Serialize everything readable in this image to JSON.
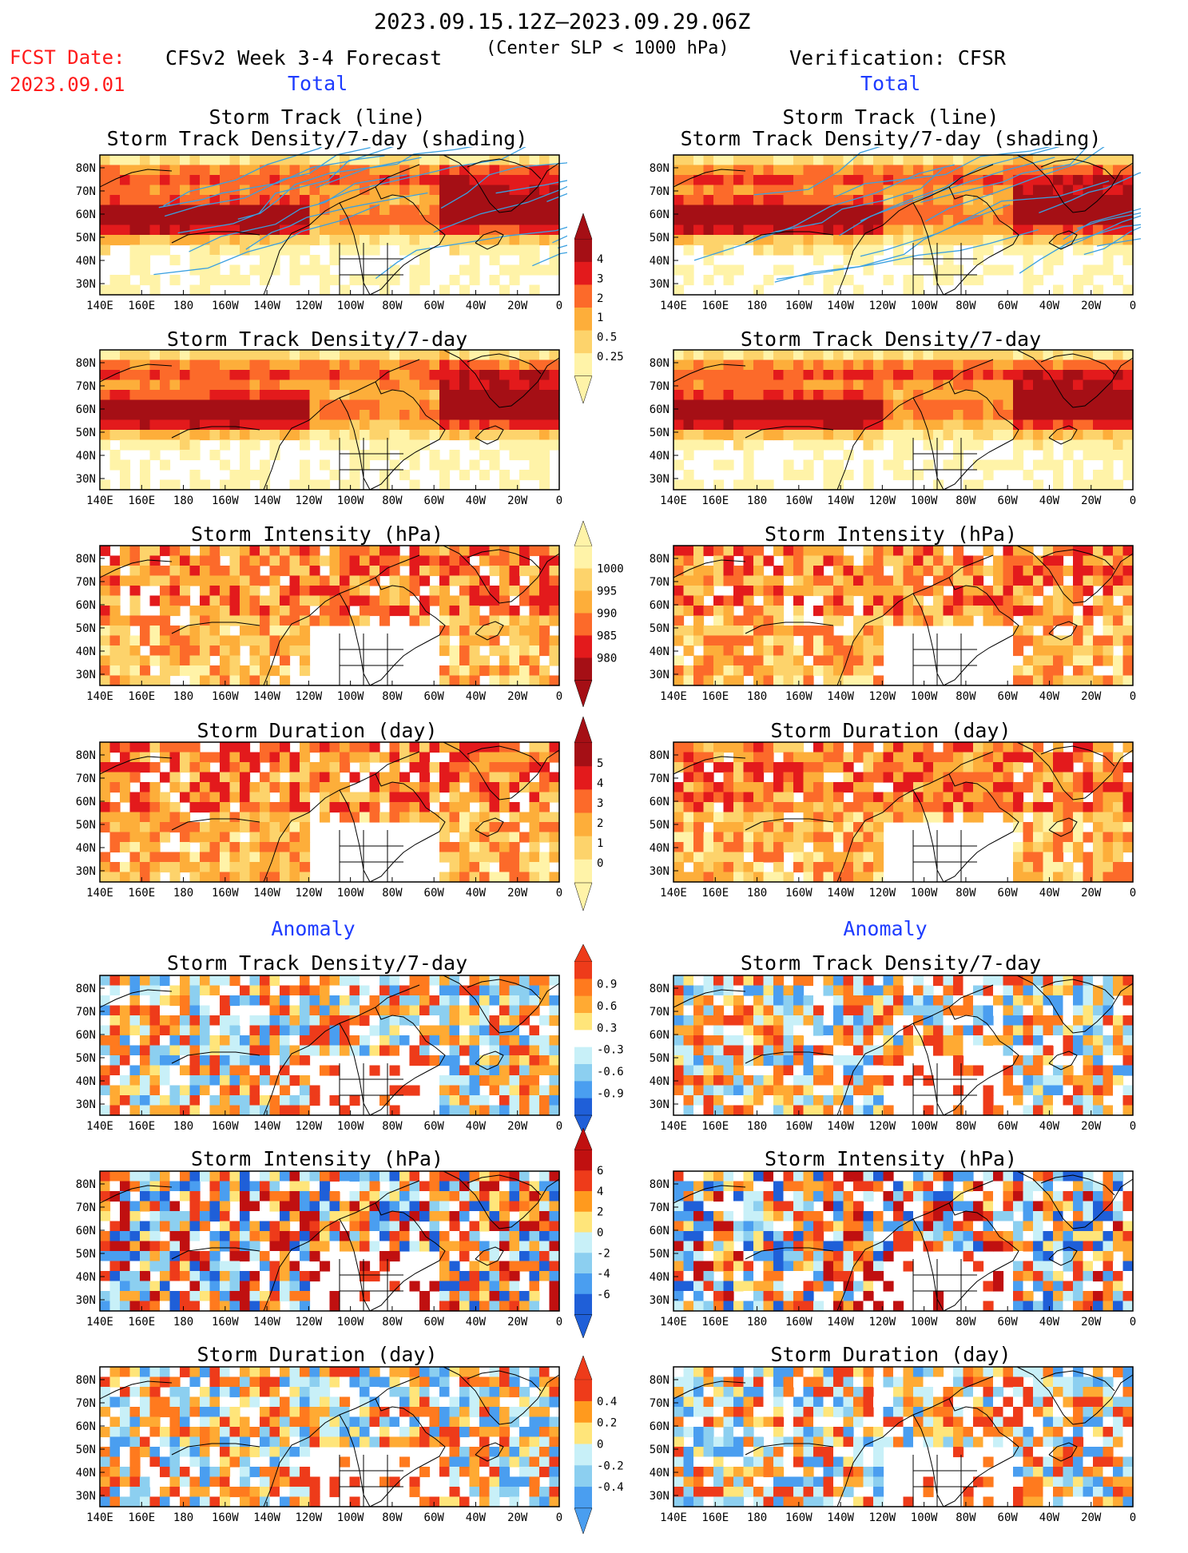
{
  "header": {
    "period": "2023.09.15.12Z–2023.09.29.06Z",
    "fcst_date_label": "FCST Date:",
    "fcst_date": "2023.09.01",
    "model": "CFSv2 Week 3-4 Forecast",
    "criterion": "(Center SLP < 1000 hPa)",
    "verification": "Verification: CFSR",
    "left_total": "Total",
    "right_total": "Total",
    "left_anomaly": "Anomaly",
    "right_anomaly": "Anomaly"
  },
  "map": {
    "lon_labels": [
      "140E",
      "160E",
      "180",
      "160W",
      "140W",
      "120W",
      "100W",
      "80W",
      "60W",
      "40W",
      "20W",
      "0"
    ],
    "lat_labels": [
      "80N",
      "70N",
      "60N",
      "50N",
      "40N",
      "30N"
    ]
  },
  "panels": {
    "left": [
      {
        "title": "Storm Track (line)",
        "title2": "Storm Track Density/7-day (shading)"
      },
      {
        "title": "Storm Track Density/7-day"
      },
      {
        "title": "Storm Intensity (hPa)"
      },
      {
        "title": "Storm Duration (day)"
      },
      {
        "title": "Storm Track Density/7-day"
      },
      {
        "title": "Storm Intensity (hPa)"
      },
      {
        "title": "Storm Duration (day)"
      }
    ],
    "right": [
      {
        "title": "Storm Track (line)",
        "title2": "Storm Track Density/7-day (shading)"
      },
      {
        "title": "Storm Track Density/7-day"
      },
      {
        "title": "Storm Intensity (hPa)"
      },
      {
        "title": "Storm Duration (day)"
      },
      {
        "title": "Storm Track Density/7-day"
      },
      {
        "title": "Storm Intensity (hPa)"
      },
      {
        "title": "Storm Duration (day)"
      }
    ]
  },
  "colorbars": [
    {
      "labels": [
        "4",
        "3",
        "2",
        "1",
        "0.5",
        "0.25"
      ],
      "colors": [
        "#a50f15",
        "#e31a1c",
        "#fc6a2a",
        "#fdae3a",
        "#fdd36b",
        "#fff3a8"
      ]
    },
    {
      "labels": [
        "1000",
        "995",
        "990",
        "985",
        "980"
      ],
      "colors": [
        "#fff3a8",
        "#fdd36b",
        "#fdae3a",
        "#fc6a2a",
        "#e31a1c",
        "#a50f15"
      ]
    },
    {
      "labels": [
        "5",
        "4",
        "3",
        "2",
        "1",
        "0"
      ],
      "colors": [
        "#a50f15",
        "#e31a1c",
        "#fc6a2a",
        "#fdae3a",
        "#fdd36b",
        "#fff3a8"
      ]
    },
    {
      "labels": [
        "0.9",
        "0.6",
        "0.3",
        "-0.3",
        "-0.6",
        "-0.9"
      ],
      "colors": [
        "#ee3b1a",
        "#ff7a1e",
        "#ffaa33",
        "#ffe57a",
        "#ffffff",
        "#c8f0f8",
        "#8ccff0",
        "#4a9ef0",
        "#1f5fd8"
      ]
    },
    {
      "labels": [
        "6",
        "4",
        "2",
        "0",
        "-2",
        "-4",
        "-6"
      ],
      "colors": [
        "#c01010",
        "#ee3b1a",
        "#ff9a1e",
        "#ffe57a",
        "#c8f0f8",
        "#8ccff0",
        "#4a9ef0",
        "#1f5fd8"
      ]
    },
    {
      "labels": [
        "0.4",
        "0.2",
        "0",
        "-0.2",
        "-0.4"
      ],
      "colors": [
        "#ee3b1a",
        "#ff9a1e",
        "#ffe57a",
        "#c8f0f8",
        "#8ccff0",
        "#4a9ef0"
      ]
    }
  ],
  "colors": {
    "ocean_land_bg": "#ffffff",
    "coast": "#000000",
    "track_line": "#3aa0e0"
  }
}
